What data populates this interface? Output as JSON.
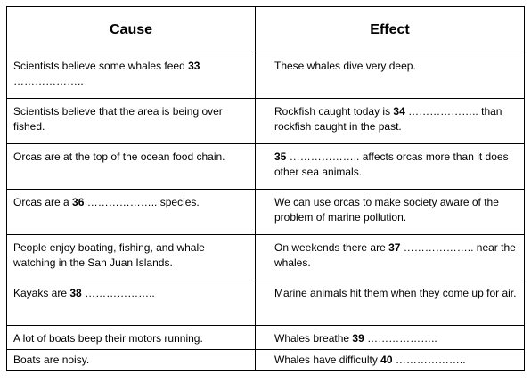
{
  "table": {
    "headers": {
      "cause": "Cause",
      "effect": "Effect"
    },
    "rows": [
      {
        "cause": {
          "before": "Scientists believe some whales feed ",
          "num": "33",
          "blank": " ………………..",
          "after": ""
        },
        "effect": {
          "before": "These whales dive very deep.",
          "num": "",
          "blank": "",
          "after": ""
        }
      },
      {
        "cause": {
          "before": "Scientists believe that the area is being over fished.",
          "num": "",
          "blank": "",
          "after": ""
        },
        "effect": {
          "before": "Rockfish caught today is ",
          "num": "34",
          "blank": " ………………..",
          "after": " than rockfish caught in the past."
        }
      },
      {
        "cause": {
          "before": "Orcas are at the top of the ocean food chain.",
          "num": "",
          "blank": "",
          "after": ""
        },
        "effect": {
          "before": "",
          "num": "35",
          "blank": " ………………..",
          "after": " affects orcas more than it does other sea animals."
        }
      },
      {
        "cause": {
          "before": "Orcas are a ",
          "num": "36",
          "blank": " ………………..",
          "after": " species."
        },
        "effect": {
          "before": "We can use orcas to make society aware of the problem of marine pollution.",
          "num": "",
          "blank": "",
          "after": ""
        }
      },
      {
        "cause": {
          "before": "People enjoy boating, fishing, and whale watching in the San Juan Islands.",
          "num": "",
          "blank": "",
          "after": ""
        },
        "effect": {
          "before": "On weekends there are ",
          "num": "37",
          "blank": " ………………..",
          "after": " near the whales."
        }
      },
      {
        "cause": {
          "before": "Kayaks are ",
          "num": "38",
          "blank": " ………………..",
          "after": ""
        },
        "effect": {
          "before": "Marine animals hit them when they come up for air.",
          "num": "",
          "blank": "",
          "after": ""
        }
      },
      {
        "cause": {
          "before": "A lot of boats beep their motors running.",
          "num": "",
          "blank": "",
          "after": ""
        },
        "effect": {
          "before": "Whales breathe ",
          "num": "39",
          "blank": " ………………..",
          "after": ""
        }
      },
      {
        "cause": {
          "before": "Boats are noisy.",
          "num": "",
          "blank": "",
          "after": ""
        },
        "effect": {
          "before": "Whales have difficulty ",
          "num": "40",
          "blank": " ………………..",
          "after": ""
        }
      }
    ]
  }
}
